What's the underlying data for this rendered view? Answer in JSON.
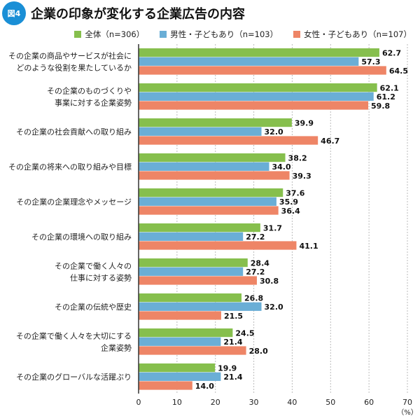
{
  "figure_label": "図4",
  "colors": {
    "badge": "#1a8fd6"
  },
  "chart_data": {
    "type": "bar",
    "orientation": "horizontal",
    "title": "企業の印象が変化する企業広告の内容",
    "categories": [
      "その企業の商品やサービスが社会に\nどのような役割を果たしているか",
      "その企業のものづくりや\n事業に対する企業姿勢",
      "その企業の社会貢献への取り組み",
      "その企業の将来への取り組みや目標",
      "その企業の企業理念やメッセージ",
      "その企業の環境への取り組み",
      "その企業で働く人々の\n仕事に対する姿勢",
      "その企業の伝統や歴史",
      "その企業で働く人々を大切にする\n企業姿勢",
      "その企業のグローバルな活躍ぶり"
    ],
    "series": [
      {
        "name": "全体（n=306）",
        "color": "#86bf4d",
        "values": [
          62.7,
          62.1,
          39.9,
          38.2,
          37.6,
          31.7,
          28.4,
          26.8,
          24.5,
          19.9
        ]
      },
      {
        "name": "男性・子どもあり（n=103）",
        "color": "#6aaed6",
        "values": [
          57.3,
          61.2,
          32.0,
          34.0,
          35.9,
          27.2,
          27.2,
          32.0,
          21.4,
          21.4
        ]
      },
      {
        "name": "女性・子どもあり（n=107）",
        "color": "#ee8566",
        "values": [
          64.5,
          59.8,
          46.7,
          39.3,
          36.4,
          41.1,
          30.8,
          21.5,
          28.0,
          14.0
        ]
      }
    ],
    "xlim": [
      0,
      70
    ],
    "xticks": [
      "0",
      "10",
      "20",
      "30",
      "40",
      "50",
      "60",
      "70"
    ],
    "xunit": "（%）",
    "grid": true,
    "legend": "top-right"
  }
}
